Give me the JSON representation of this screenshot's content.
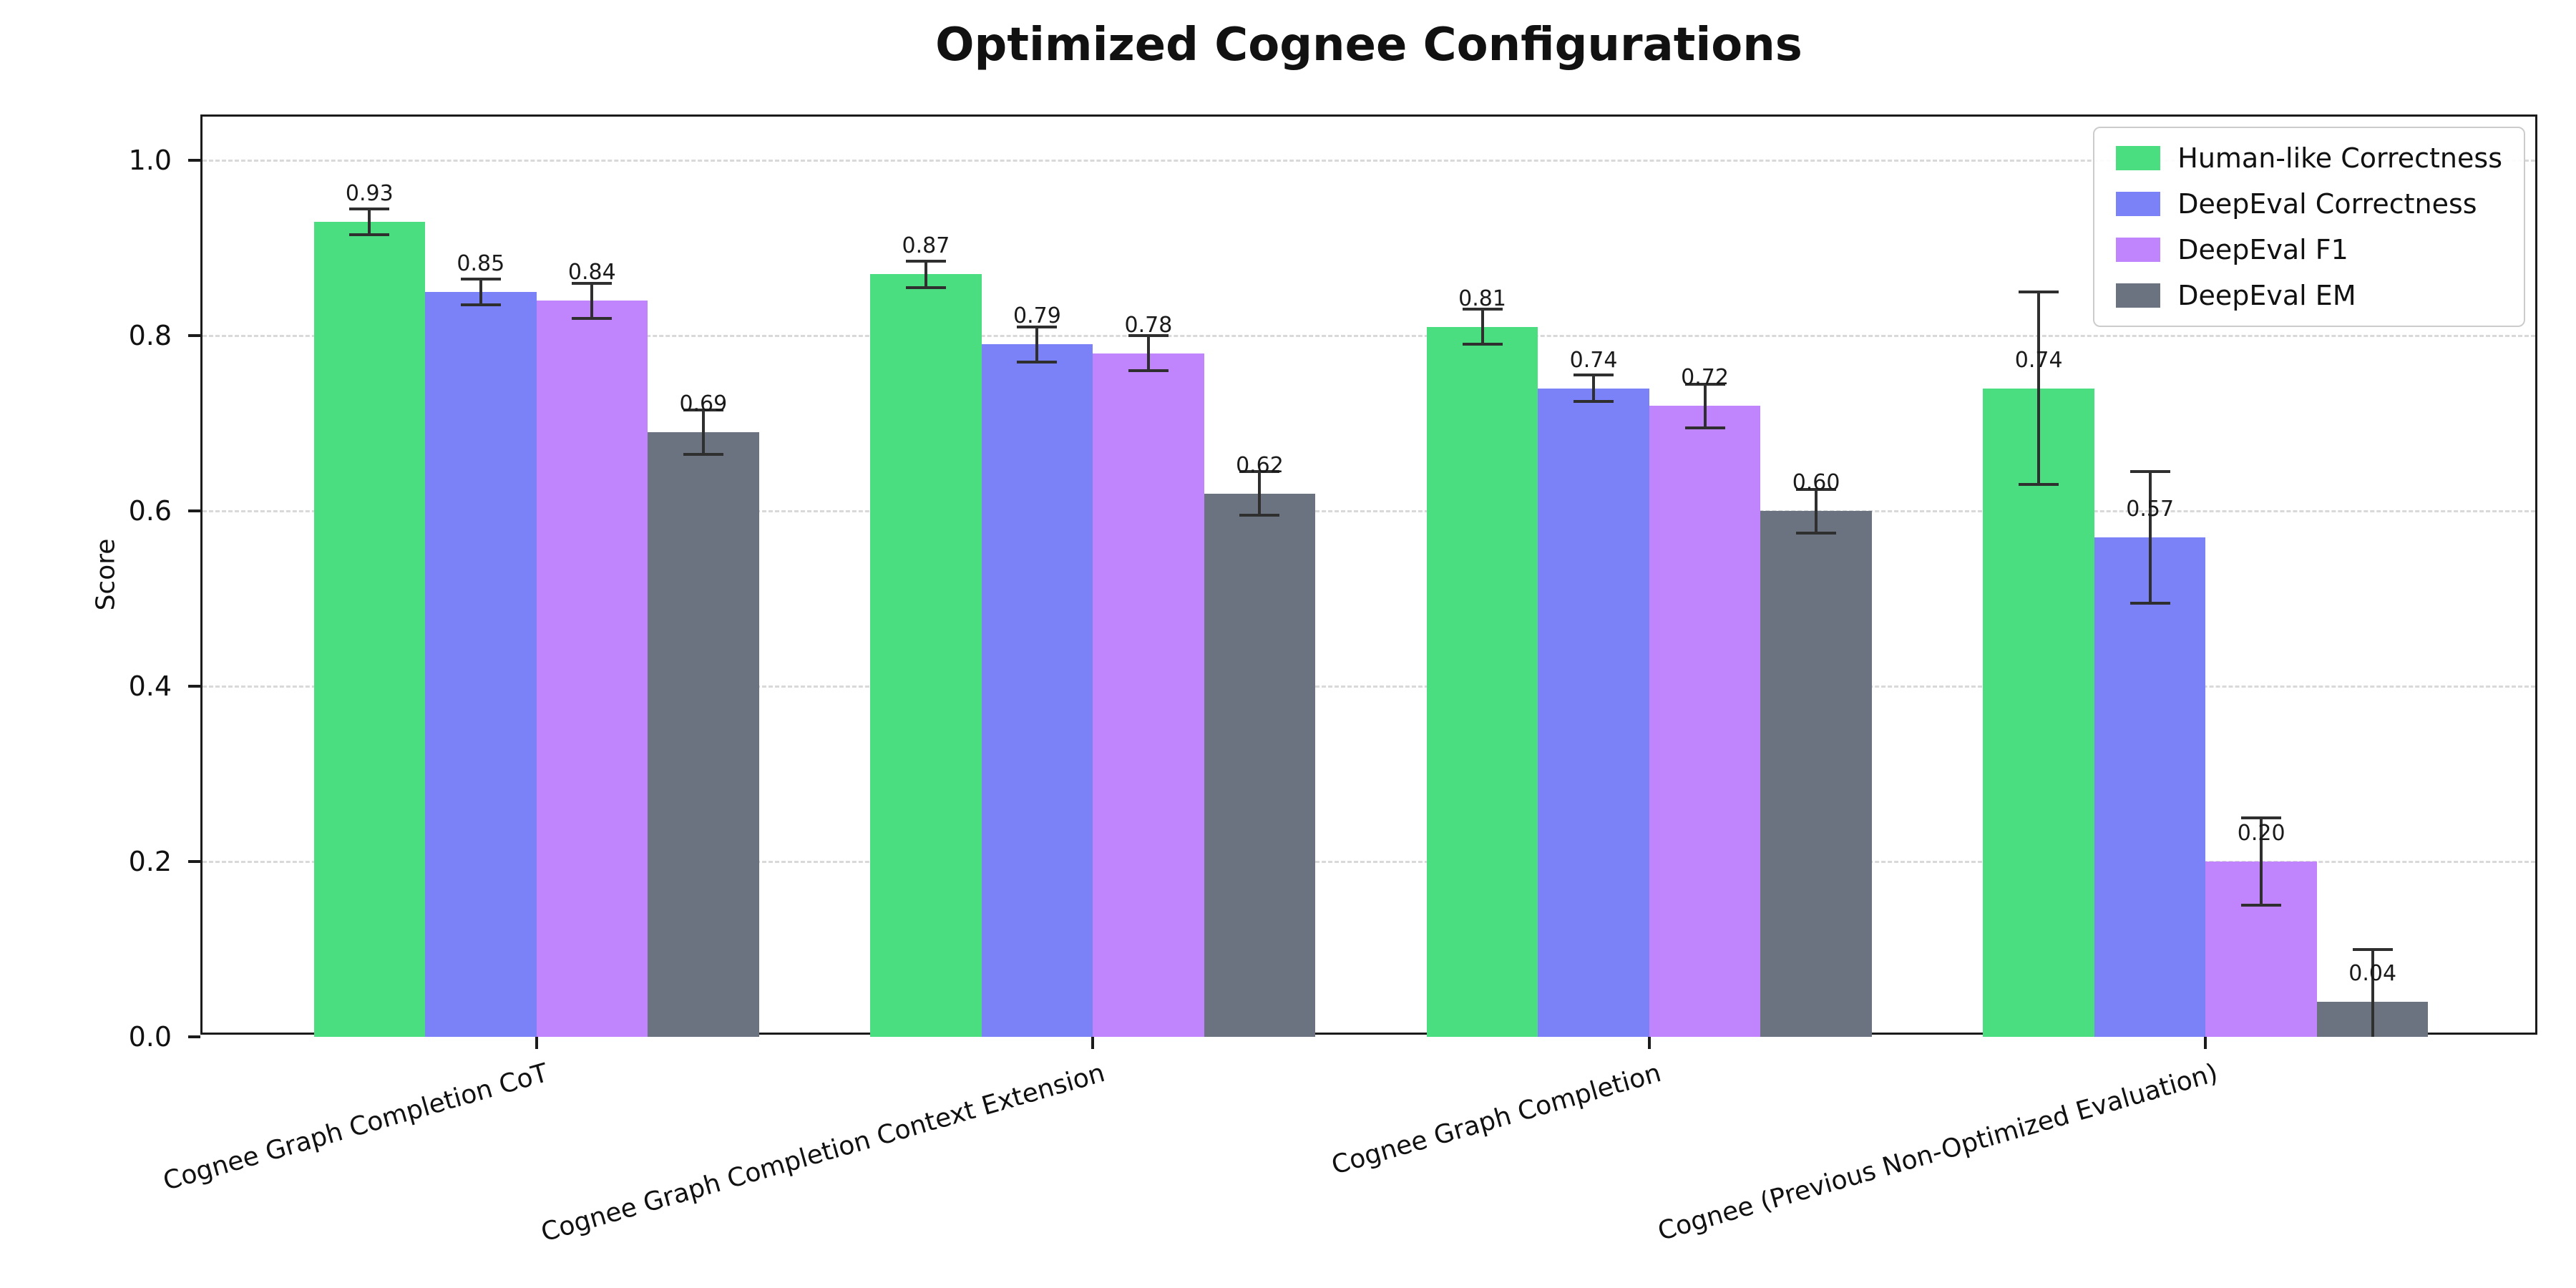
{
  "chart_data": {
    "type": "bar",
    "title": "Optimized Cognee Configurations",
    "xlabel": "",
    "ylabel": "Score",
    "ylim": [
      0,
      1.05
    ],
    "yticks": [
      0.0,
      0.2,
      0.4,
      0.6,
      0.8,
      1.0
    ],
    "grid": "horizontal dashed gridlines",
    "legend_position": "upper right",
    "error_bar_color": "#2f2f2f",
    "categories": [
      "Cognee Graph Completion CoT",
      "Cognee Graph Completion Context Extension",
      "Cognee Graph Completion",
      "Cognee (Previous Non-Optimized Evaluation)"
    ],
    "series": [
      {
        "name": "Human-like Correctness",
        "color": "#4ade80",
        "values": [
          0.93,
          0.87,
          0.81,
          0.74
        ],
        "errors": [
          0.015,
          0.015,
          0.02,
          0.11
        ],
        "labels": [
          "0.93",
          "0.87",
          "0.81",
          "0.74"
        ]
      },
      {
        "name": "DeepEval Correctness",
        "color": "#7b82f7",
        "values": [
          0.85,
          0.79,
          0.74,
          0.57
        ],
        "errors": [
          0.015,
          0.02,
          0.015,
          0.075
        ],
        "labels": [
          "0.85",
          "0.79",
          "0.74",
          "0.57"
        ]
      },
      {
        "name": "DeepEval F1",
        "color": "#c084fc",
        "values": [
          0.84,
          0.78,
          0.72,
          0.2
        ],
        "errors": [
          0.02,
          0.02,
          0.025,
          0.05
        ],
        "labels": [
          "0.84",
          "0.78",
          "0.72",
          "0.20"
        ]
      },
      {
        "name": "DeepEval EM",
        "color": "#6b7280",
        "values": [
          0.69,
          0.62,
          0.6,
          0.04
        ],
        "errors": [
          0.025,
          0.025,
          0.025,
          0.06
        ],
        "labels": [
          "0.69",
          "0.62",
          "0.60",
          "0.04"
        ]
      }
    ]
  }
}
